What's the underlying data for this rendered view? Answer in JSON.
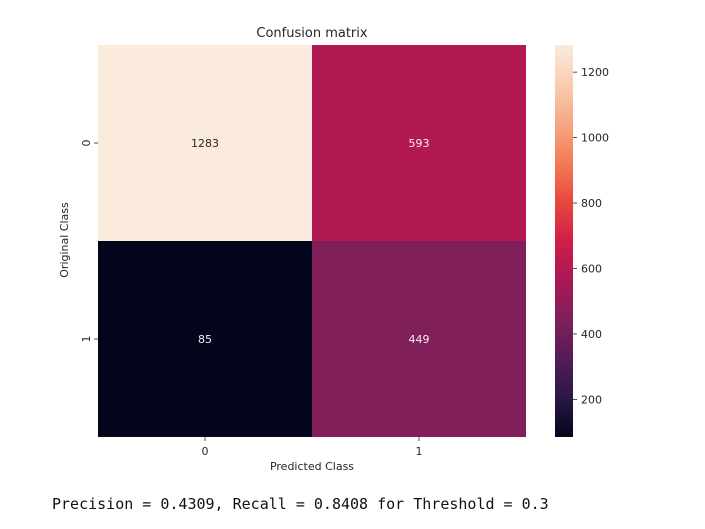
{
  "chart_data": {
    "type": "heatmap",
    "title": "Confusion matrix",
    "xlabel": "Predicted Class",
    "ylabel": "Original Class",
    "x_categories": [
      "0",
      "1"
    ],
    "y_categories": [
      "0",
      "1"
    ],
    "values": [
      [
        1283,
        593
      ],
      [
        85,
        449
      ]
    ],
    "value_labels": [
      [
        "1283",
        "593"
      ],
      [
        "85",
        "449"
      ]
    ],
    "colorbar": {
      "colormap": "rocket",
      "range": [
        85,
        1283
      ],
      "ticks": [
        200,
        400,
        600,
        800,
        1000,
        1200
      ],
      "tick_labels": [
        "200",
        "400",
        "600",
        "800",
        "1000",
        "1200"
      ]
    },
    "grid": false,
    "legend": "colorbar-right"
  },
  "caption": "Precision = 0.4309, Recall = 0.8408 for Threshold = 0.3",
  "colors": {
    "text": "#262626",
    "cell_text_light": "#262626",
    "cell_text_dark": "#f0f0f0"
  }
}
